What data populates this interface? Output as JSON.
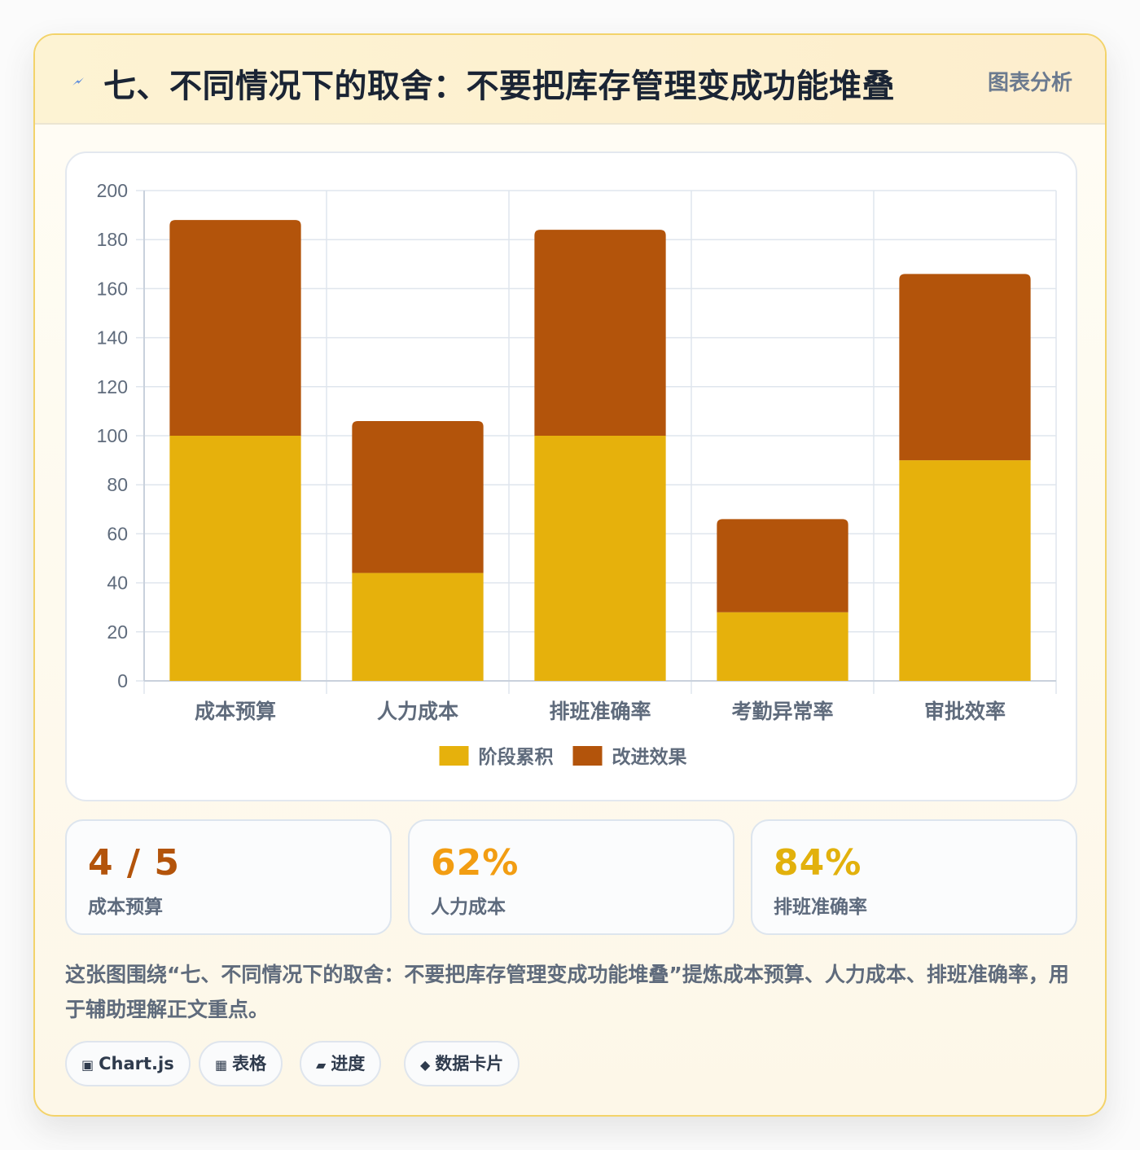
{
  "header": {
    "icon": "lightning-icon",
    "title": "七、不同情况下的取舍：不要把库存管理变成功能堆叠",
    "tag": "图表分析"
  },
  "chart_data": {
    "type": "bar",
    "stacked": true,
    "categories": [
      "成本预算",
      "人力成本",
      "排班准确率",
      "考勤异常率",
      "审批效率"
    ],
    "series": [
      {
        "name": "阶段累积",
        "color": "#e6b10c",
        "values": [
          100,
          44,
          100,
          28,
          90
        ]
      },
      {
        "name": "改进效果",
        "color": "#b3540b",
        "values": [
          88,
          62,
          84,
          38,
          76
        ]
      }
    ],
    "ylim": [
      0,
      200
    ],
    "yticks": [
      0,
      20,
      40,
      60,
      80,
      100,
      120,
      140,
      160,
      180,
      200
    ],
    "grid": true,
    "legend_position": "bottom"
  },
  "stats": [
    {
      "value": "4 / 5",
      "label": "成本预算",
      "color": "#b3540b"
    },
    {
      "value": "62%",
      "label": "人力成本",
      "color": "#f29d12"
    },
    {
      "value": "84%",
      "label": "排班准确率",
      "color": "#e2b10c"
    }
  ],
  "description": "这张图围绕“七、不同情况下的取舍：不要把库存管理变成功能堆叠”提炼成本预算、人力成本、排班准确率，用于辅助理解正文重点。",
  "chips": [
    {
      "icon": "▣",
      "label": "Chart.js"
    },
    {
      "icon": "▦",
      "label": "表格"
    },
    {
      "icon": "▰",
      "label": "进度"
    },
    {
      "icon": "◆",
      "label": "数据卡片"
    }
  ]
}
